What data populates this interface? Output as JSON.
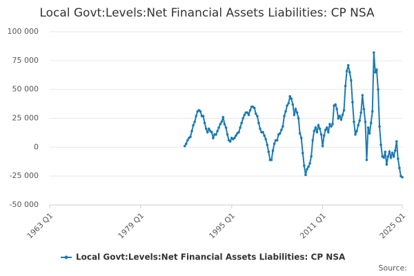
{
  "chart_data": {
    "type": "line",
    "title": "Local Govt:Levels:Net Financial Assets Liabilities: CP NSA",
    "source": "Source:",
    "x": [
      "1986 Q4",
      "1987 Q1",
      "1987 Q2",
      "1987 Q3",
      "1987 Q4",
      "1988 Q1",
      "1988 Q2",
      "1988 Q3",
      "1988 Q4",
      "1989 Q1",
      "1989 Q2",
      "1989 Q3",
      "1989 Q4",
      "1990 Q1",
      "1990 Q2",
      "1990 Q3",
      "1990 Q4",
      "1991 Q1",
      "1991 Q2",
      "1991 Q3",
      "1991 Q4",
      "1992 Q1",
      "1992 Q2",
      "1992 Q3",
      "1992 Q4",
      "1993 Q1",
      "1993 Q2",
      "1993 Q3",
      "1993 Q4",
      "1994 Q1",
      "1994 Q2",
      "1994 Q3",
      "1994 Q4",
      "1995 Q1",
      "1995 Q2",
      "1995 Q3",
      "1995 Q4",
      "1996 Q1",
      "1996 Q2",
      "1996 Q3",
      "1996 Q4",
      "1997 Q1",
      "1997 Q2",
      "1997 Q3",
      "1997 Q4",
      "1998 Q1",
      "1998 Q2",
      "1998 Q3",
      "1998 Q4",
      "1999 Q1",
      "1999 Q2",
      "1999 Q3",
      "1999 Q4",
      "2000 Q1",
      "2000 Q2",
      "2000 Q3",
      "2000 Q4",
      "2001 Q1",
      "2001 Q2",
      "2001 Q3",
      "2001 Q4",
      "2002 Q1",
      "2002 Q2",
      "2002 Q3",
      "2002 Q4",
      "2003 Q1",
      "2003 Q2",
      "2003 Q3",
      "2003 Q4",
      "2004 Q1",
      "2004 Q2",
      "2004 Q3",
      "2004 Q4",
      "2005 Q1",
      "2005 Q2",
      "2005 Q3",
      "2005 Q4",
      "2006 Q1",
      "2006 Q2",
      "2006 Q3",
      "2006 Q4",
      "2007 Q1",
      "2007 Q2",
      "2007 Q3",
      "2007 Q4",
      "2008 Q1",
      "2008 Q2",
      "2008 Q3",
      "2008 Q4",
      "2009 Q1",
      "2009 Q2",
      "2009 Q3",
      "2009 Q4",
      "2010 Q1",
      "2010 Q2",
      "2010 Q3",
      "2010 Q4",
      "2011 Q1",
      "2011 Q2",
      "2011 Q3",
      "2011 Q4",
      "2012 Q1",
      "2012 Q2",
      "2012 Q3",
      "2012 Q4",
      "2013 Q1",
      "2013 Q2",
      "2013 Q3",
      "2013 Q4",
      "2014 Q1",
      "2014 Q2",
      "2014 Q3",
      "2014 Q4",
      "2015 Q1",
      "2015 Q2",
      "2015 Q3",
      "2015 Q4",
      "2016 Q1",
      "2016 Q2",
      "2016 Q3",
      "2016 Q4",
      "2017 Q1",
      "2017 Q2",
      "2017 Q3",
      "2017 Q4",
      "2018 Q1",
      "2018 Q2",
      "2018 Q3",
      "2018 Q4",
      "2019 Q1",
      "2019 Q2",
      "2019 Q3",
      "2019 Q4",
      "2020 Q1",
      "2020 Q2",
      "2020 Q3",
      "2020 Q4",
      "2021 Q1",
      "2021 Q2",
      "2021 Q3",
      "2021 Q4",
      "2022 Q1",
      "2022 Q2",
      "2022 Q3",
      "2022 Q4",
      "2023 Q1",
      "2023 Q2",
      "2023 Q3",
      "2023 Q4",
      "2024 Q1",
      "2024 Q2",
      "2024 Q3",
      "2024 Q4",
      "2025 Q1"
    ],
    "series": [
      {
        "name": "Local Govt:Levels:Net Financial Assets Liabilities: CP NSA",
        "color": "#1a7ab5",
        "values": [
          1000,
          3000,
          6000,
          8000,
          9000,
          14000,
          19000,
          22000,
          27000,
          31000,
          32000,
          31000,
          27000,
          27000,
          21000,
          16000,
          13000,
          16000,
          14000,
          13000,
          8000,
          11000,
          11000,
          14000,
          17000,
          20000,
          22000,
          26000,
          20000,
          17000,
          11000,
          6000,
          5000,
          8000,
          7000,
          8000,
          10000,
          12000,
          13000,
          17000,
          21000,
          25000,
          28000,
          30000,
          30000,
          28000,
          32000,
          35000,
          35000,
          34000,
          29000,
          27000,
          21000,
          16000,
          13000,
          13000,
          10000,
          7000,
          2000,
          -4000,
          -11000,
          -11000,
          -3000,
          3000,
          6000,
          6000,
          11000,
          12000,
          15000,
          18000,
          27000,
          31000,
          36000,
          38000,
          44000,
          42000,
          37000,
          28000,
          33000,
          30000,
          25000,
          12000,
          8000,
          -5000,
          -16000,
          -24000,
          -19000,
          -17000,
          -14000,
          -8000,
          6000,
          14000,
          17000,
          13000,
          19000,
          16000,
          11000,
          1000,
          10000,
          15000,
          17000,
          13000,
          20000,
          18000,
          20000,
          36000,
          37000,
          33000,
          25000,
          27000,
          24000,
          28000,
          32000,
          53000,
          66000,
          71000,
          65000,
          58000,
          39000,
          22000,
          11000,
          14000,
          19000,
          23000,
          30000,
          45000,
          33000,
          22000,
          -11000,
          17000,
          12000,
          21000,
          31000,
          82000,
          65000,
          67000,
          50000,
          18000,
          2000,
          -8000,
          -9000,
          -4000,
          -15000,
          -8000,
          -4000,
          -9000,
          -5000,
          -8000,
          -3000,
          5000,
          -10000,
          -18000,
          -25000,
          -26000
        ]
      }
    ],
    "xlim": [
      "1963 Q1",
      "2025 Q1"
    ],
    "xticks": [
      "1963 Q1",
      "1979 Q1",
      "1995 Q1",
      "2011 Q1",
      "2025 Q1"
    ],
    "ylim": [
      -50000,
      100000
    ],
    "yticks": [
      {
        "value": -50000,
        "label": "-50 000"
      },
      {
        "value": -25000,
        "label": "-25 000"
      },
      0,
      {
        "value": 25000,
        "label": "25 000"
      },
      {
        "value": 50000,
        "label": "50 000"
      },
      {
        "value": 75000,
        "label": "75 000"
      },
      {
        "value": 100000,
        "label": "100 000"
      }
    ],
    "grid": true
  }
}
